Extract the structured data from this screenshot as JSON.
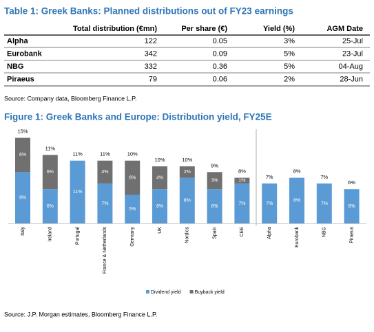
{
  "table": {
    "title": "Table 1: Greek Banks: Planned distributions out of FY23 earnings",
    "columns": [
      "Total distribution (€mn)",
      "Per share (€)",
      "Yield (%)",
      "AGM Date"
    ],
    "rows": [
      [
        "Alpha",
        "122",
        "0.05",
        "3%",
        "25-Jul"
      ],
      [
        "Eurobank",
        "342",
        "0.09",
        "5%",
        "23-Jul"
      ],
      [
        "NBG",
        "332",
        "0.36",
        "5%",
        "04-Aug"
      ],
      [
        "Piraeus",
        "79",
        "0.06",
        "2%",
        "28-Jun"
      ]
    ],
    "source": "Source: Company data, Bloomberg Finance L.P."
  },
  "chart_data": {
    "type": "stacked_bar",
    "title": "Figure 1: Greek Banks and Europe: Distribution yield, FY25E",
    "categories": [
      "Italy",
      "Ireland",
      "Portugal",
      "France & Netherlands",
      "Germany",
      "UK",
      "Nordics",
      "Spain",
      "CEE",
      "Alpha",
      "Eurobank",
      "NBG",
      "Piraeus"
    ],
    "series": [
      {
        "name": "Dividend yield",
        "color": "#5b9bd5",
        "values": [
          9,
          6,
          11,
          7,
          5,
          6,
          8,
          6,
          7,
          7,
          8,
          7,
          6
        ],
        "value_labels": [
          "9%",
          "6%",
          "11%",
          "7%",
          "5%",
          "6%",
          "8%",
          "6%",
          "7%",
          "7%",
          "8%",
          "7%",
          "6%"
        ]
      },
      {
        "name": "Buyback yield",
        "color": "#707070",
        "values": [
          6,
          6,
          null,
          4,
          6,
          4,
          2,
          3,
          1,
          null,
          null,
          null,
          null
        ],
        "value_labels": [
          "6%",
          "6%",
          null,
          "4%",
          "6%",
          "4%",
          "2%",
          "3%",
          "1%",
          null,
          null,
          null,
          null
        ]
      }
    ],
    "total_labels": [
      "15%",
      "11%",
      "11%",
      "11%",
      "10%",
      "10%",
      "10%",
      "9%",
      "8%",
      "7%",
      "8%",
      "7%",
      "6%"
    ],
    "source": "Source: J.P. Morgan estimates, Bloomberg Finance L.P."
  }
}
